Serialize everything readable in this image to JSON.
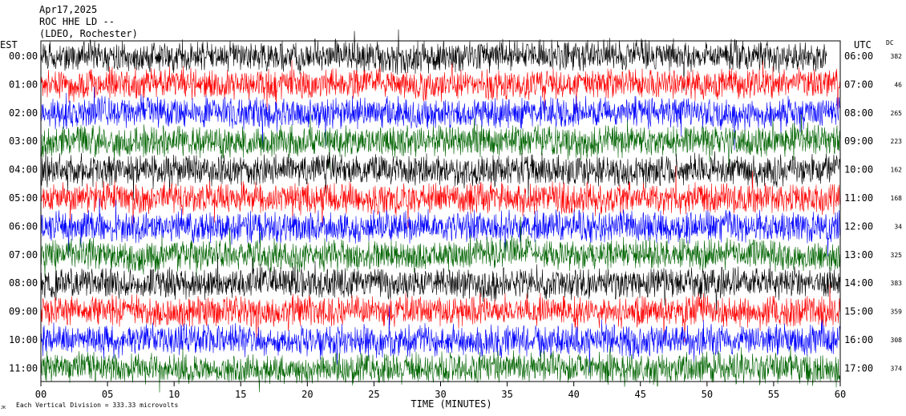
{
  "header": {
    "date": "Apr17,2025",
    "station": "ROC HHE LD --",
    "network": "(LDEO, Rochester)"
  },
  "left_axis_title": "EST",
  "right_axis_title": "UTC",
  "dc_title": "DC",
  "footer": {
    "scale_note": "Each Vertical Division =  333.33 microvolts",
    "corner_mark": "JK"
  },
  "chart_data": {
    "type": "line",
    "title": "",
    "xlabel": "TIME (MINUTES)",
    "ylabel": "",
    "xlim": [
      0,
      60
    ],
    "x_ticks": [
      0,
      5,
      10,
      15,
      20,
      25,
      30,
      35,
      40,
      45,
      50,
      55,
      60
    ],
    "x_tick_labels": [
      "00",
      "05",
      "10",
      "15",
      "20",
      "25",
      "30",
      "35",
      "40",
      "45",
      "50",
      "55",
      "60"
    ],
    "grid": false,
    "trace_colors": [
      "#000000",
      "#ff0000",
      "#0000ff",
      "#006400"
    ],
    "traces": [
      {
        "est": "00:00",
        "utc": "06:00",
        "dc": "382",
        "color": "#000000",
        "end_minute": 59
      },
      {
        "est": "01:00",
        "utc": "07:00",
        "dc": "46",
        "color": "#ff0000",
        "end_minute": 60
      },
      {
        "est": "02:00",
        "utc": "08:00",
        "dc": "265",
        "color": "#0000ff",
        "end_minute": 60
      },
      {
        "est": "03:00",
        "utc": "09:00",
        "dc": "223",
        "color": "#006400",
        "end_minute": 60
      },
      {
        "est": "04:00",
        "utc": "10:00",
        "dc": "162",
        "color": "#000000",
        "end_minute": 60
      },
      {
        "est": "05:00",
        "utc": "11:00",
        "dc": "168",
        "color": "#ff0000",
        "end_minute": 60
      },
      {
        "est": "06:00",
        "utc": "12:00",
        "dc": "34",
        "color": "#0000ff",
        "end_minute": 60
      },
      {
        "est": "07:00",
        "utc": "13:00",
        "dc": "325",
        "color": "#006400",
        "end_minute": 60
      },
      {
        "est": "08:00",
        "utc": "14:00",
        "dc": "383",
        "color": "#000000",
        "end_minute": 60
      },
      {
        "est": "09:00",
        "utc": "15:00",
        "dc": "359",
        "color": "#ff0000",
        "end_minute": 60
      },
      {
        "est": "10:00",
        "utc": "16:00",
        "dc": "308",
        "color": "#0000ff",
        "end_minute": 60
      },
      {
        "est": "11:00",
        "utc": "17:00",
        "dc": "374",
        "color": "#006400",
        "end_minute": 60
      }
    ]
  }
}
